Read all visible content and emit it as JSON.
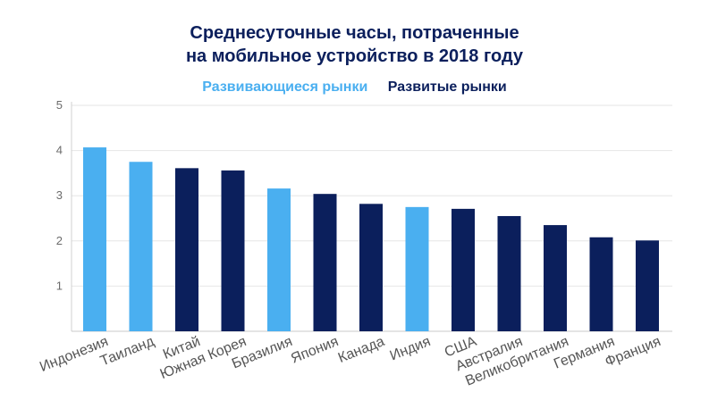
{
  "chart_data": {
    "type": "bar",
    "title_line1": "Среднесуточные часы, потраченные",
    "title_line2": "на мобильное устройство в 2018 году",
    "legend": [
      {
        "label": "Развивающиеся рынки",
        "color": "#4aaff0"
      },
      {
        "label": "Развитые рынки",
        "color": "#0b1f5c"
      }
    ],
    "categories": [
      "Индонезия",
      "Таиланд",
      "Китай",
      "Южная Корея",
      "Бразилия",
      "Япония",
      "Канада",
      "Индия",
      "США",
      "Австралия",
      "Великобритания",
      "Германия",
      "Франция"
    ],
    "values": [
      4.07,
      3.75,
      3.61,
      3.56,
      3.16,
      3.04,
      2.82,
      2.75,
      2.71,
      2.55,
      2.35,
      2.08,
      2.01
    ],
    "groups": [
      0,
      0,
      1,
      1,
      0,
      1,
      1,
      0,
      1,
      1,
      1,
      1,
      1
    ],
    "yticks": [
      "1",
      "2",
      "3",
      "4",
      "5"
    ],
    "ylim": [
      0,
      5
    ],
    "grid": true
  }
}
